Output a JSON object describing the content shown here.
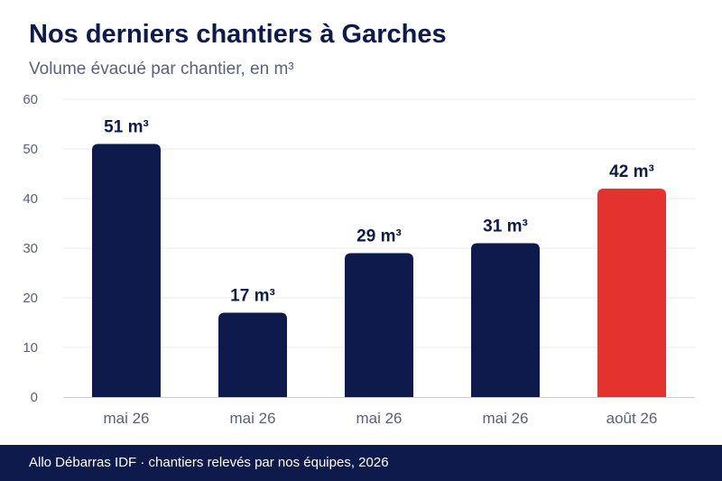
{
  "chart_data": {
    "type": "bar",
    "title": "Nos derniers chantiers à Garches",
    "subtitle": "Volume évacué par chantier, en m³",
    "categories": [
      "mai 26",
      "mai 26",
      "mai 26",
      "mai 26",
      "août 26"
    ],
    "values": [
      51,
      17,
      29,
      31,
      42
    ],
    "value_labels": [
      "51 m³",
      "17 m³",
      "29 m³",
      "31 m³",
      "42 m³"
    ],
    "ylim": [
      0,
      60
    ],
    "yticks": [
      0,
      10,
      20,
      30,
      40,
      50,
      60
    ],
    "xlabel": "",
    "ylabel": "",
    "grid": true,
    "legend": "none",
    "colors": {
      "bar": "#0d1a4b",
      "highlight": "#e4322f",
      "highlight_index": 4
    }
  },
  "footer": {
    "text": "Allo Débarras IDF · chantiers relevés par nos équipes, 2026"
  }
}
